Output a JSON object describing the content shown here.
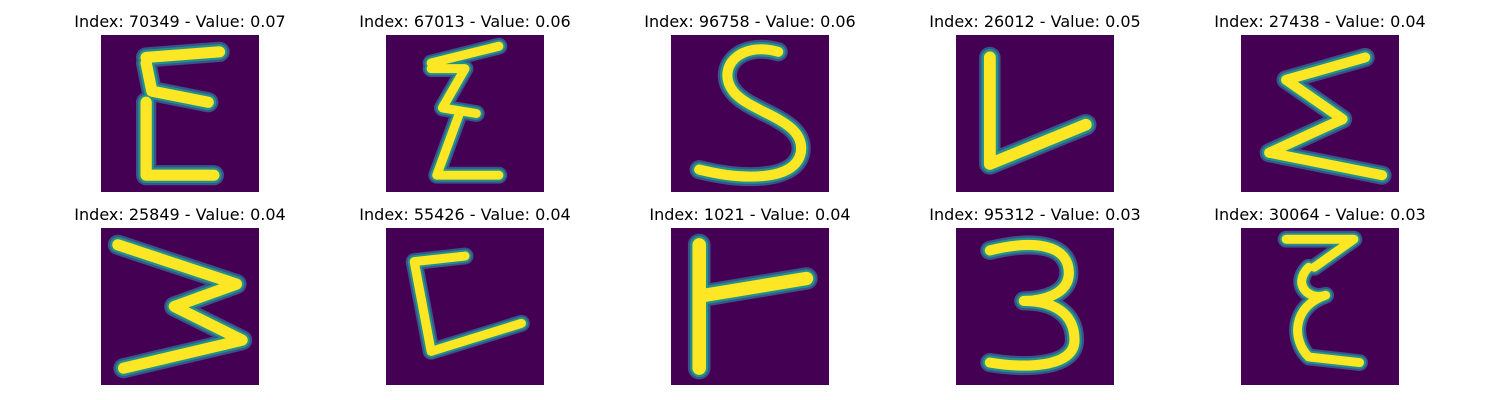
{
  "colors": {
    "background": "#440154",
    "stroke_core": "#fde725",
    "stroke_edge": "#21918c",
    "stroke_halo": "#3b528b"
  },
  "grid": {
    "rows": 2,
    "cols": 5,
    "items": [
      {
        "index": 70349,
        "value": 0.07,
        "title": "Index: 70349 - Value: 0.07",
        "glyph": "E-like"
      },
      {
        "index": 67013,
        "value": 0.06,
        "title": "Index: 67013 - Value: 0.06",
        "glyph": "Z-like"
      },
      {
        "index": 96758,
        "value": 0.06,
        "title": "Index: 96758 - Value: 0.06",
        "glyph": "S-like"
      },
      {
        "index": 26012,
        "value": 0.05,
        "title": "Index: 26012 - Value: 0.05",
        "glyph": "L-like"
      },
      {
        "index": 27438,
        "value": 0.04,
        "title": "Index: 27438 - Value: 0.04",
        "glyph": "sigma-like"
      },
      {
        "index": 25849,
        "value": 0.04,
        "title": "Index: 25849 - Value: 0.04",
        "glyph": "M-like"
      },
      {
        "index": 55426,
        "value": 0.04,
        "title": "Index: 55426 - Value: 0.04",
        "glyph": "L-like"
      },
      {
        "index": 1021,
        "value": 0.04,
        "title": "Index: 1021 - Value: 0.04",
        "glyph": "T-like"
      },
      {
        "index": 95312,
        "value": 0.03,
        "title": "Index: 95312 - Value: 0.03",
        "glyph": "3-like"
      },
      {
        "index": 30064,
        "value": 0.03,
        "title": "Index: 30064 - Value: 0.03",
        "glyph": "epsilon-like"
      }
    ]
  }
}
